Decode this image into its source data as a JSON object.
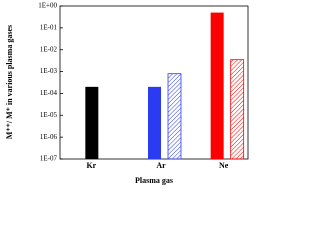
{
  "chart_data": {
    "type": "bar",
    "y_label": "M⁺⁺/ M⁺ in various plasma gases",
    "x_label": "Plasma gas",
    "categories": [
      "Kr",
      "Ar",
      "Ne"
    ],
    "category_colors": [
      "#000000",
      "#2b3cf0",
      "#ff0000"
    ],
    "series": [
      {
        "pattern": "solid",
        "values": [
          0.0002,
          0.0002,
          0.5
        ]
      },
      {
        "pattern": "hatched",
        "values": [
          null,
          0.0008,
          0.0035
        ]
      }
    ],
    "log_scale": true,
    "ylim": [
      1e-07,
      1
    ],
    "yticks": [
      {
        "value": 1e-07,
        "label": "1E-07"
      },
      {
        "value": 1e-06,
        "label": "1E-06"
      },
      {
        "value": 1e-05,
        "label": "1E-05"
      },
      {
        "value": 0.0001,
        "label": "1E-04"
      },
      {
        "value": 0.001,
        "label": "1E-03"
      },
      {
        "value": 0.01,
        "label": "1E-02"
      },
      {
        "value": 0.1,
        "label": "1E-01"
      },
      {
        "value": 1,
        "label": "1E+00"
      }
    ]
  }
}
